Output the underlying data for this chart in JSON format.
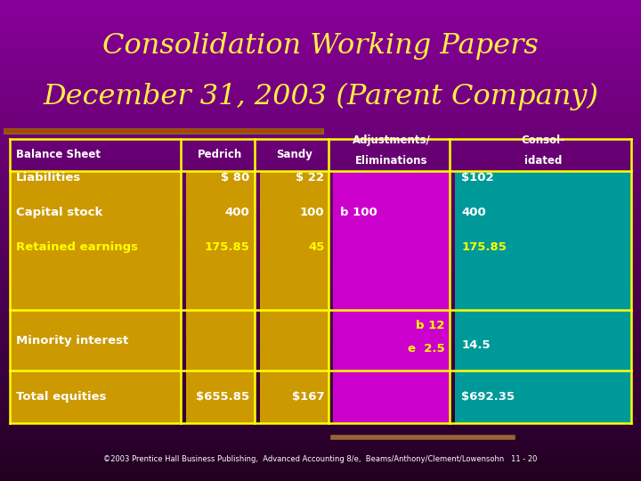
{
  "title_line1": "Consolidation Working Papers",
  "title_line2": "December 31, 2003 (Parent Company)",
  "title_color": "#FFEE44",
  "bg_color_top": "#660099",
  "bg_color_bot": "#330033",
  "footer": "©2003 Prentice Hall Business Publishing,  Advanced Accounting 8/e,  Beams/Anthony/Clement/Lowensohn   11 - 20",
  "separator_color": "#996633",
  "grid_color": "#FFFF00",
  "cell_gold": "#CC9900",
  "cell_magenta": "#CC00CC",
  "cell_teal": "#009999",
  "col_header_color": "#FFFFFF",
  "row_labels": [
    "Liabilities",
    "Capital stock",
    "Retained earnings",
    "Minority interest",
    "Total equities"
  ],
  "row_label_colors": [
    "#FFFFFF",
    "#FFFFFF",
    "#FFFF00",
    "#FFFFFF",
    "#FFFFFF"
  ],
  "pedrich_vals": [
    "$ 80",
    "400",
    "175.85",
    "",
    "$655.85"
  ],
  "pedrich_cols": [
    "#FFFFFF",
    "#FFFFFF",
    "#FFFF00",
    "#FFFFFF",
    "#FFFFFF"
  ],
  "sandy_vals": [
    "$ 22",
    "100",
    "45",
    "",
    "$167"
  ],
  "sandy_cols": [
    "#FFFFFF",
    "#FFFFFF",
    "#FFFF00",
    "#FFFFFF",
    "#FFFFFF"
  ],
  "adj_vals": [
    "",
    "b 100",
    "",
    "b 12\ne  2.5",
    ""
  ],
  "adj_cols": [
    "#FFFFFF",
    "#FFFFFF",
    "#FFFFFF",
    "#FFFF00",
    "#FFFFFF"
  ],
  "consol_vals": [
    "$102",
    "400",
    "175.85",
    "14.5",
    "$692.35"
  ],
  "consol_cols": [
    "#FFFFFF",
    "#FFFFFF",
    "#FFFF00",
    "#FFFFFF",
    "#FFFFFF"
  ]
}
